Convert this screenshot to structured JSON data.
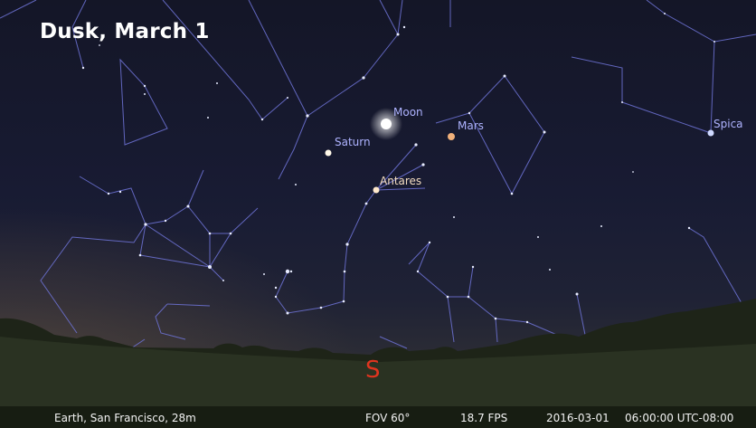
{
  "caption": "Dusk, March 1",
  "sky_objects": {
    "moon": "Moon",
    "mars": "Mars",
    "saturn": "Saturn",
    "antares": "Antares",
    "spica": "Spica"
  },
  "cardinal_direction": "S",
  "status_bar": {
    "location": "Earth, San Francisco, 28m",
    "fov": "FOV 60°",
    "fps": "18.7 FPS",
    "date": "2016-03-01",
    "time": "06:00:00 UTC-08:00"
  },
  "colors": {
    "constellation_lines": "#6f74d8",
    "planet_label": "#aeb3ff",
    "antares_label": "#f3dcc0",
    "cardinal": "#e0341f"
  }
}
